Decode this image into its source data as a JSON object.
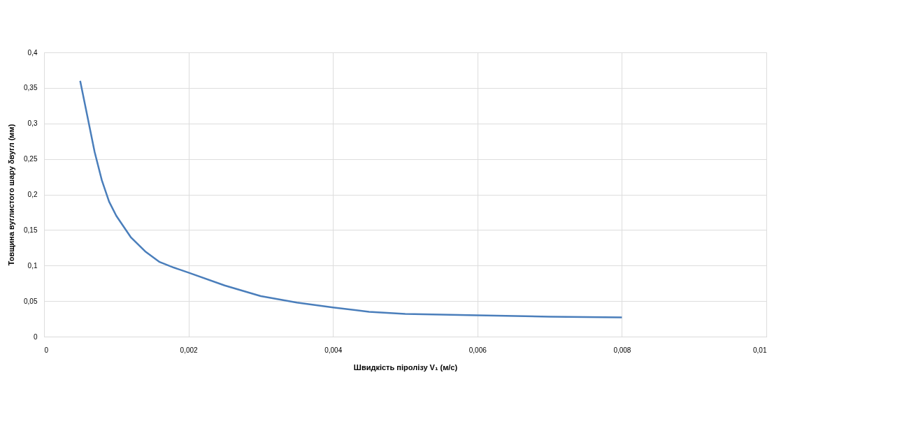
{
  "chart_data": {
    "type": "line",
    "xlabel": "Швидкість піролізу V₁ (м/с)",
    "ylabel": "Товщина вуглистого шару δвугл (мм)",
    "x": [
      0.0005,
      0.0006,
      0.0007,
      0.0008,
      0.0009,
      0.001,
      0.0012,
      0.0014,
      0.0016,
      0.0018,
      0.002,
      0.0025,
      0.003,
      0.0035,
      0.004,
      0.0045,
      0.005,
      0.006,
      0.007,
      0.008
    ],
    "series": [
      {
        "color": "#4a7ebb",
        "values": [
          0.36,
          0.31,
          0.26,
          0.22,
          0.19,
          0.17,
          0.14,
          0.12,
          0.105,
          0.097,
          0.09,
          0.072,
          0.057,
          0.048,
          0.041,
          0.035,
          0.032,
          0.03,
          0.028,
          0.027
        ]
      }
    ],
    "xlim": [
      0,
      0.01
    ],
    "xticks": [
      0,
      {
        "value": 0.002,
        "label": "0,002"
      },
      {
        "value": 0.004,
        "label": "0,004"
      },
      {
        "value": 0.006,
        "label": "0,006"
      },
      {
        "value": 0.008,
        "label": "0,008"
      },
      {
        "value": 0.01,
        "label": "0,01"
      }
    ],
    "ylim": [
      0,
      0.4
    ],
    "yticks": [
      0,
      {
        "value": 0.05,
        "label": "0,05"
      },
      {
        "value": 0.1,
        "label": "0,1"
      },
      {
        "value": 0.15,
        "label": "0,15"
      },
      {
        "value": 0.2,
        "label": "0,2"
      },
      {
        "value": 0.25,
        "label": "0,25"
      },
      {
        "value": 0.3,
        "label": "0,3"
      },
      {
        "value": 0.35,
        "label": "0,35"
      },
      {
        "value": 0.4,
        "label": "0,4"
      }
    ],
    "grid": true,
    "marker": "none",
    "line_style": "solid",
    "legend": false
  }
}
